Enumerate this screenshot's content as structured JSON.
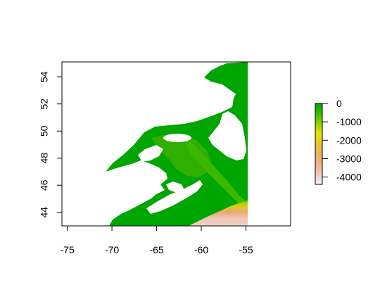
{
  "map": {
    "x_ticks": [
      "-75",
      "-70",
      "-65",
      "-60",
      "-55"
    ],
    "y_ticks": [
      "44",
      "46",
      "48",
      "50",
      "52",
      "54"
    ],
    "x_tick_values": [
      -75,
      -70,
      -65,
      -60,
      -55
    ],
    "y_tick_values": [
      44,
      46,
      48,
      50,
      52,
      54
    ],
    "xlim": [
      -75.6,
      -50
    ],
    "ylim": [
      43,
      55.1
    ],
    "raster_extent": {
      "xmin": -73,
      "xmax": -55,
      "ymin": 43,
      "ymax": 55
    },
    "colors": {
      "deep": "#f1dbd6",
      "mid_deep": "#e8b07a",
      "mid": "#e8d000",
      "shelf": "#52c000",
      "shallow": "#00a600",
      "ridge": "#3cb800"
    }
  },
  "legend": {
    "labels": [
      "0",
      "-1000",
      "-2000",
      "-3000",
      "-4000"
    ],
    "values": [
      0,
      -1000,
      -2000,
      -3000,
      -4000
    ],
    "range": [
      -4400,
      0
    ],
    "gradient": [
      "#00a600",
      "#3cbc00",
      "#8fcf00",
      "#e6e600",
      "#e8c32e",
      "#ebb25e",
      "#edb48e",
      "#f0c9c0",
      "#f2f2f2"
    ]
  }
}
